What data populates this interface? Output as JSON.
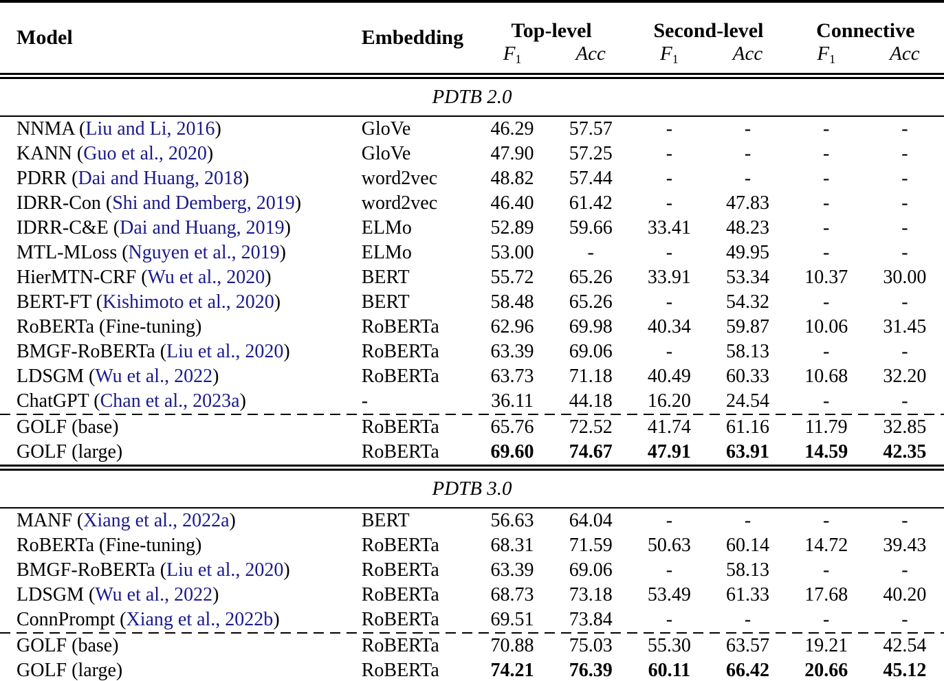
{
  "colors": {
    "citation": "#1a1a8c",
    "text": "#000000",
    "background": "#ffffff"
  },
  "table": {
    "header": {
      "model_label": "Model",
      "embedding_label": "Embedding",
      "groups": [
        {
          "label": "Top-level"
        },
        {
          "label": "Second-level"
        },
        {
          "label": "Connective"
        }
      ],
      "metric_f_base": "F",
      "metric_f_sub": "1",
      "metric_acc": "Acc",
      "paren_open": "(",
      "paren_close": ")"
    },
    "sections": [
      {
        "title": "PDTB 2.0",
        "rows": [
          {
            "model": "NNMA",
            "cite": "Liu and Li, 2016",
            "embedding": "GloVe",
            "values": [
              "46.29",
              "57.57",
              "-",
              "-",
              "-",
              "-"
            ]
          },
          {
            "model": "KANN",
            "cite": "Guo et al., 2020",
            "embedding": "GloVe",
            "values": [
              "47.90",
              "57.25",
              "-",
              "-",
              "-",
              "-"
            ]
          },
          {
            "model": "PDRR",
            "cite": "Dai and Huang, 2018",
            "embedding": "word2vec",
            "values": [
              "48.82",
              "57.44",
              "-",
              "-",
              "-",
              "-"
            ]
          },
          {
            "model": "IDRR-Con",
            "cite": "Shi and Demberg, 2019",
            "embedding": "word2vec",
            "values": [
              "46.40",
              "61.42",
              "-",
              "47.83",
              "-",
              "-"
            ]
          },
          {
            "model": "IDRR-C&E",
            "cite": "Dai and Huang, 2019",
            "embedding": "ELMo",
            "values": [
              "52.89",
              "59.66",
              "33.41",
              "48.23",
              "-",
              "-"
            ]
          },
          {
            "model": "MTL-MLoss",
            "cite": "Nguyen et al., 2019",
            "embedding": "ELMo",
            "values": [
              "53.00",
              "-",
              "-",
              "49.95",
              "-",
              "-"
            ]
          },
          {
            "model": "HierMTN-CRF",
            "cite": "Wu et al., 2020",
            "embedding": "BERT",
            "values": [
              "55.72",
              "65.26",
              "33.91",
              "53.34",
              "10.37",
              "30.00"
            ]
          },
          {
            "model": "BERT-FT",
            "cite": "Kishimoto et al., 2020",
            "embedding": "BERT",
            "values": [
              "58.48",
              "65.26",
              "-",
              "54.32",
              "-",
              "-"
            ]
          },
          {
            "model": "RoBERTa (Fine-tuning)",
            "cite": null,
            "embedding": "RoBERTa",
            "values": [
              "62.96",
              "69.98",
              "40.34",
              "59.87",
              "10.06",
              "31.45"
            ]
          },
          {
            "model": "BMGF-RoBERTa",
            "cite": "Liu et al., 2020",
            "embedding": "RoBERTa",
            "values": [
              "63.39",
              "69.06",
              "-",
              "58.13",
              "-",
              "-"
            ]
          },
          {
            "model": "LDSGM",
            "cite": "Wu et al., 2022",
            "embedding": "RoBERTa",
            "values": [
              "63.73",
              "71.18",
              "40.49",
              "60.33",
              "10.68",
              "32.20"
            ]
          },
          {
            "model": "ChatGPT",
            "cite": "Chan et al., 2023a",
            "embedding": "-",
            "values": [
              "36.11",
              "44.18",
              "16.20",
              "24.54",
              "-",
              "-"
            ]
          },
          {
            "model": "GOLF (base)",
            "cite": null,
            "embedding": "RoBERTa",
            "values": [
              "65.76",
              "72.52",
              "41.74",
              "61.16",
              "11.79",
              "32.85"
            ],
            "dashed_before": true
          },
          {
            "model": "GOLF (large)",
            "cite": null,
            "embedding": "RoBERTa",
            "values": [
              "69.60",
              "74.67",
              "47.91",
              "63.91",
              "14.59",
              "42.35"
            ],
            "bold_values": true
          }
        ]
      },
      {
        "title": "PDTB 3.0",
        "rows": [
          {
            "model": "MANF",
            "cite": "Xiang et al., 2022a",
            "embedding": "BERT",
            "values": [
              "56.63",
              "64.04",
              "-",
              "-",
              "-",
              "-"
            ]
          },
          {
            "model": "RoBERTa (Fine-tuning)",
            "cite": null,
            "embedding": "RoBERTa",
            "values": [
              "68.31",
              "71.59",
              "50.63",
              "60.14",
              "14.72",
              "39.43"
            ]
          },
          {
            "model": "BMGF-RoBERTa",
            "cite": "Liu et al., 2020",
            "embedding": "RoBERTa",
            "values": [
              "63.39",
              "69.06",
              "-",
              "58.13",
              "-",
              "-"
            ]
          },
          {
            "model": "LDSGM",
            "cite": "Wu et al., 2022",
            "embedding": "RoBERTa",
            "values": [
              "68.73",
              "73.18",
              "53.49",
              "61.33",
              "17.68",
              "40.20"
            ]
          },
          {
            "model": "ConnPrompt",
            "cite": "Xiang et al., 2022b",
            "embedding": "RoBERTa",
            "values": [
              "69.51",
              "73.84",
              "-",
              "-",
              "-",
              "-"
            ]
          },
          {
            "model": "GOLF (base)",
            "cite": null,
            "embedding": "RoBERTa",
            "values": [
              "70.88",
              "75.03",
              "55.30",
              "63.57",
              "19.21",
              "42.54"
            ],
            "dashed_before": true
          },
          {
            "model": "GOLF (large)",
            "cite": null,
            "embedding": "RoBERTa",
            "values": [
              "74.21",
              "76.39",
              "60.11",
              "66.42",
              "20.66",
              "45.12"
            ],
            "bold_values": true
          }
        ]
      }
    ]
  }
}
